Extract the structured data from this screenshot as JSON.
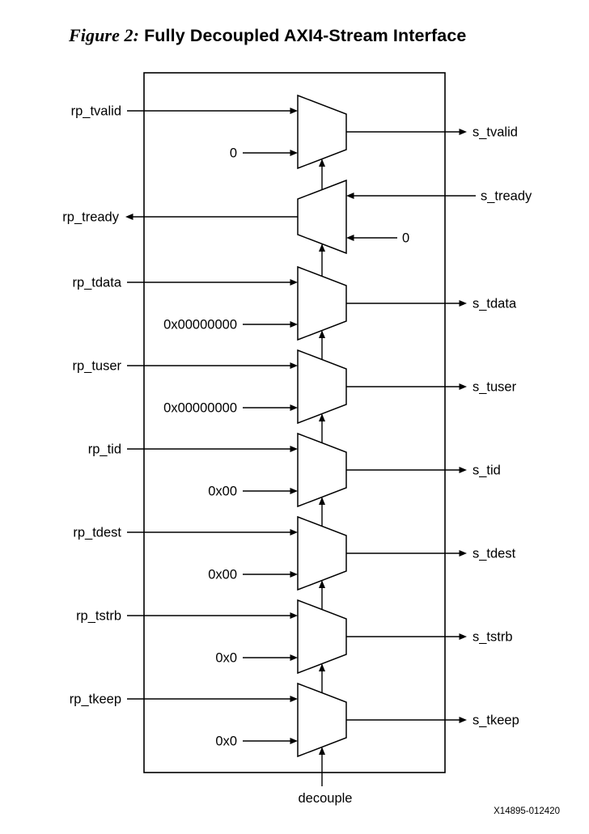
{
  "title": {
    "prefix": "Figure 2:",
    "text": "Fully Decoupled AXI4-Stream Interface"
  },
  "figure_id": "X14895-012420",
  "decouple_label": "decouple",
  "colors": {
    "line": "#000000",
    "background": "#ffffff"
  },
  "muxes": [
    {
      "name": "tvalid",
      "direction": "right",
      "input_a": "rp_tvalid",
      "input_b": "0",
      "output": "s_tvalid"
    },
    {
      "name": "tready",
      "direction": "left",
      "input_a": "s_tready",
      "input_b": "0",
      "output": "rp_tready"
    },
    {
      "name": "tdata",
      "direction": "right",
      "input_a": "rp_tdata",
      "input_b": "0x00000000",
      "output": "s_tdata"
    },
    {
      "name": "tuser",
      "direction": "right",
      "input_a": "rp_tuser",
      "input_b": "0x00000000",
      "output": "s_tuser"
    },
    {
      "name": "tid",
      "direction": "right",
      "input_a": "rp_tid",
      "input_b": "0x00",
      "output": "s_tid"
    },
    {
      "name": "tdest",
      "direction": "right",
      "input_a": "rp_tdest",
      "input_b": "0x00",
      "output": "s_tdest"
    },
    {
      "name": "tstrb",
      "direction": "right",
      "input_a": "rp_tstrb",
      "input_b": "0x0",
      "output": "s_tstrb"
    },
    {
      "name": "tkeep",
      "direction": "right",
      "input_a": "rp_tkeep",
      "input_b": "0x0",
      "output": "s_tkeep"
    }
  ]
}
